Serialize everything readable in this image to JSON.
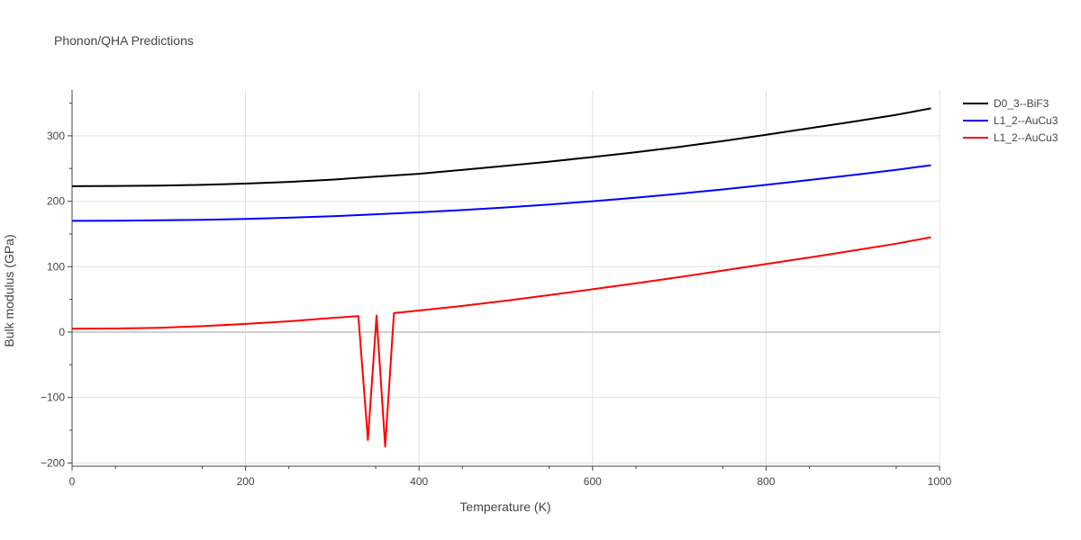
{
  "chart_data": {
    "type": "line",
    "title": "Phonon/QHA Predictions",
    "xlabel": "Temperature (K)",
    "ylabel": "Bulk modulus (GPa)",
    "xlim": [
      0,
      1000
    ],
    "ylim": [
      -205,
      370
    ],
    "x_ticks": [
      0,
      200,
      400,
      600,
      800,
      1000
    ],
    "y_ticks": [
      -200,
      -100,
      0,
      100,
      200,
      300
    ],
    "y_tick_labels": [
      "−200",
      "−100",
      "0",
      "100",
      "200",
      "300"
    ],
    "grid": true,
    "legend_position": "top-right",
    "series": [
      {
        "name": "D0_3--BiF3",
        "color": "#000000",
        "x": [
          0,
          50,
          100,
          150,
          200,
          250,
          300,
          350,
          400,
          450,
          500,
          550,
          600,
          650,
          700,
          750,
          800,
          850,
          900,
          950,
          990
        ],
        "y": [
          223,
          223.3,
          223.8,
          225,
          227,
          229.5,
          233,
          237.5,
          242,
          248,
          254,
          260.5,
          267.5,
          275,
          283,
          292,
          301.5,
          311.5,
          321.5,
          332,
          342
        ]
      },
      {
        "name": "L1_2--AuCu3",
        "color": "#0000ff",
        "x": [
          0,
          50,
          100,
          150,
          200,
          250,
          300,
          350,
          400,
          450,
          500,
          550,
          600,
          650,
          700,
          750,
          800,
          850,
          900,
          950,
          990
        ],
        "y": [
          170,
          170.3,
          170.8,
          171.5,
          173,
          174.8,
          177,
          180,
          183,
          186.5,
          190.5,
          195,
          200,
          205.5,
          211.5,
          218,
          225,
          232.5,
          240,
          248,
          255
        ]
      },
      {
        "name": "L1_2--AuCu3",
        "color": "#ff0000",
        "x": [
          0,
          50,
          100,
          150,
          200,
          250,
          300,
          330,
          341,
          351,
          361,
          371,
          400,
          450,
          500,
          550,
          600,
          650,
          700,
          750,
          800,
          850,
          900,
          950,
          990
        ],
        "y": [
          5,
          5.5,
          6.5,
          9,
          12.5,
          16.5,
          21.5,
          24.5,
          -165,
          25,
          -175,
          29,
          33,
          40,
          48,
          56.5,
          65.5,
          74.5,
          84,
          94,
          104,
          114,
          124.5,
          135,
          145
        ]
      }
    ]
  }
}
